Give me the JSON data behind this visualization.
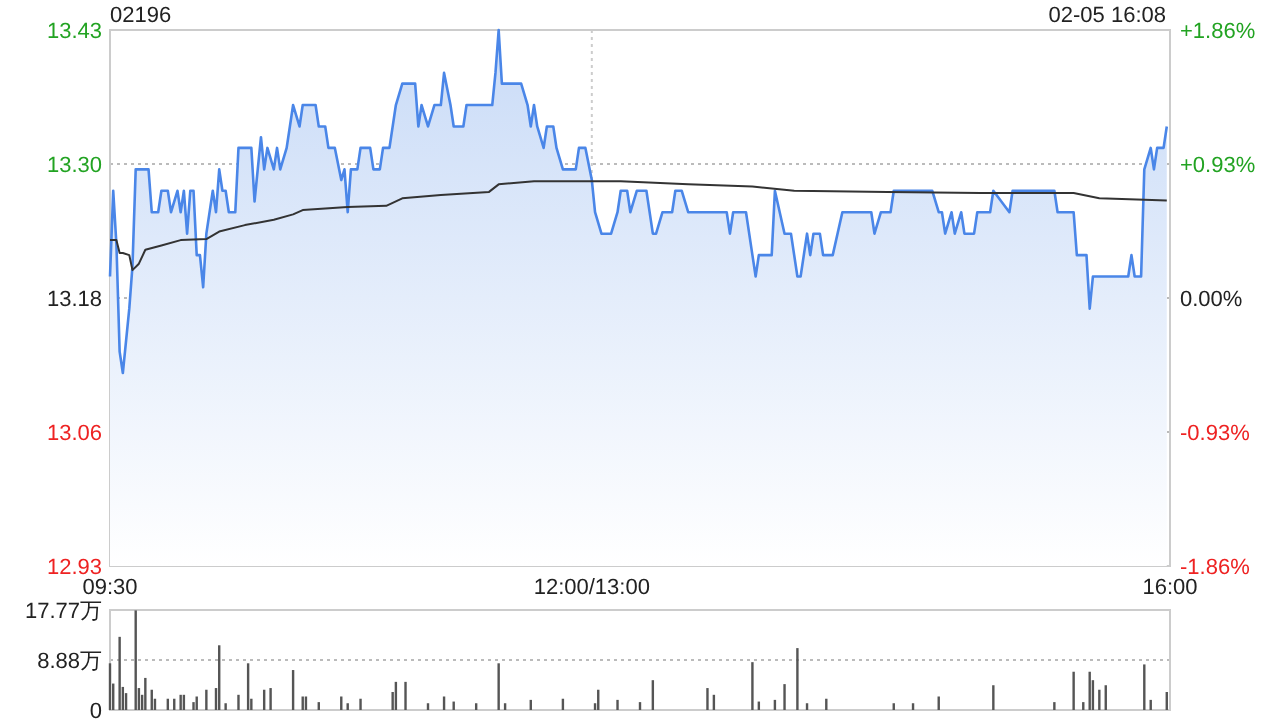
{
  "chart_data": [
    {
      "type": "area",
      "title": "02196",
      "annotations": [
        "02-05 16:08"
      ],
      "grid": true,
      "categories": [
        "09:30",
        null,
        null,
        null,
        null,
        null,
        null,
        null,
        null,
        null,
        null,
        null,
        null,
        null,
        null,
        null,
        null,
        null,
        null,
        null,
        null,
        null,
        null,
        null,
        null,
        null,
        null,
        null,
        null,
        null,
        null,
        null,
        null,
        null,
        null,
        null,
        null,
        null,
        null,
        null,
        null,
        null,
        null,
        null,
        null,
        null,
        null,
        null,
        null,
        null,
        null,
        null,
        null,
        null,
        null,
        null,
        null,
        null,
        null,
        null,
        null,
        null,
        null,
        null,
        null,
        null,
        null,
        null,
        null,
        null,
        null,
        null,
        null,
        null,
        null,
        null,
        null,
        null,
        null,
        null,
        null,
        null,
        null,
        null,
        null,
        null,
        null,
        null,
        null,
        null,
        null,
        null,
        null,
        null,
        null,
        null,
        null,
        null,
        null,
        null,
        null,
        null,
        null,
        null,
        null,
        null,
        null,
        null,
        null,
        null,
        null,
        null,
        null,
        null,
        null,
        null,
        null,
        null,
        null,
        null,
        null,
        null,
        null,
        null,
        null,
        null,
        null,
        null,
        null,
        null,
        null,
        null,
        null,
        null,
        null,
        null,
        null,
        null,
        null,
        null,
        null,
        null,
        null,
        null,
        null,
        null,
        null,
        null,
        null,
        null,
        "12:00/13:00",
        null,
        null,
        null,
        null,
        null,
        null,
        null,
        null,
        null,
        null,
        null,
        null,
        null,
        null,
        null,
        null,
        null,
        null,
        null,
        null,
        null,
        null,
        null,
        null,
        null,
        null,
        null,
        null,
        null,
        null,
        null,
        null,
        null,
        null,
        null,
        null,
        null,
        null,
        null,
        null,
        null,
        null,
        null,
        null,
        null,
        null,
        null,
        null,
        null,
        null,
        null,
        null,
        null,
        null,
        null,
        null,
        null,
        null,
        null,
        null,
        null,
        null,
        null,
        null,
        null,
        null,
        null,
        null,
        null,
        null,
        null,
        null,
        null,
        null,
        null,
        null,
        null,
        null,
        null,
        null,
        null,
        null,
        null,
        null,
        null,
        null,
        null,
        null,
        null,
        null,
        null,
        null,
        null,
        null,
        null,
        null,
        null,
        null,
        null,
        null,
        null,
        null,
        null,
        null,
        null,
        null,
        null,
        null,
        null,
        null,
        null,
        null,
        null,
        null,
        null,
        null,
        null,
        null,
        null,
        null,
        null,
        null,
        null,
        null,
        null,
        null,
        null,
        null,
        null,
        null,
        null,
        null,
        null,
        null,
        null,
        null,
        null,
        null,
        null,
        null,
        null,
        null,
        null,
        null,
        null,
        null,
        null,
        null,
        null,
        null,
        null,
        null,
        null,
        null,
        null,
        null,
        null,
        null,
        null,
        null,
        null,
        null,
        null,
        null,
        null,
        null,
        null,
        null,
        null,
        null,
        null,
        null,
        null,
        null,
        null,
        null,
        null,
        null,
        null,
        "16:00"
      ],
      "ylim": [
        12.93,
        13.43
      ],
      "yticks": [
        12.93,
        {
          "value": 13.055,
          "label": "13.06"
        },
        13.18,
        {
          "value": 13.305,
          "label": "13.30"
        },
        13.43
      ],
      "y2lim": [
        -1.86,
        1.86
      ],
      "y2ticks": [
        {
          "value": -1.86,
          "label": "-1.86%"
        },
        {
          "value": -0.93,
          "label": "-0.93%"
        },
        {
          "value": 0,
          "label": "0.00%"
        },
        {
          "value": 0.93,
          "label": "+0.93%"
        },
        {
          "value": 1.86,
          "label": "+1.86%"
        }
      ],
      "series": [
        {
          "type": "area",
          "color": "#4a86e8",
          "values": [
            13.2,
            13.28,
            13.23,
            13.13,
            13.11,
            null,
            13.17,
            13.21,
            13.3,
            null,
            null,
            null,
            13.3,
            13.26,
            null,
            13.26,
            13.28,
            null,
            13.28,
            13.26,
            null,
            13.28,
            13.26,
            13.28,
            13.24,
            13.28,
            13.28,
            13.22,
            13.22,
            13.19,
            13.24,
            null,
            13.28,
            13.26,
            13.3,
            13.28,
            13.28,
            13.26,
            null,
            13.26,
            13.32,
            null,
            null,
            null,
            13.32,
            13.27,
            null,
            13.33,
            13.3,
            13.32,
            null,
            13.3,
            13.32,
            13.3,
            null,
            13.32,
            13.34,
            13.36,
            null,
            13.34,
            13.36,
            null,
            null,
            null,
            13.36,
            13.34,
            null,
            13.34,
            13.32,
            null,
            13.32,
            null,
            13.29,
            13.3,
            13.26,
            13.3,
            null,
            13.3,
            13.32,
            null,
            null,
            13.32,
            13.3,
            null,
            13.3,
            13.32,
            null,
            13.32,
            null,
            13.36,
            null,
            13.38,
            null,
            null,
            null,
            13.38,
            13.34,
            13.36,
            null,
            13.34,
            null,
            13.36,
            null,
            13.36,
            13.39,
            null,
            13.36,
            13.34,
            null,
            null,
            13.34,
            13.36,
            null,
            null,
            null,
            null,
            null,
            null,
            null,
            13.36,
            13.39,
            13.43,
            13.38,
            null,
            null,
            null,
            null,
            null,
            13.38,
            null,
            13.36,
            13.34,
            13.36,
            13.34,
            null,
            13.32,
            13.34,
            null,
            13.34,
            13.32,
            null,
            13.3,
            null,
            null,
            null,
            13.3,
            13.32,
            null,
            13.32,
            null,
            13.29,
            13.26,
            null,
            13.24,
            null,
            null,
            13.24,
            null,
            13.26,
            13.28,
            null,
            13.28,
            13.26,
            null,
            13.28,
            null,
            null,
            13.28,
            null,
            13.24,
            13.24,
            null,
            13.26,
            null,
            null,
            13.26,
            13.28,
            null,
            13.28,
            null,
            13.26,
            null,
            null,
            null,
            null,
            null,
            null,
            null,
            null,
            null,
            null,
            null,
            13.26,
            13.24,
            13.26,
            null,
            null,
            null,
            13.26,
            null,
            13.22,
            13.2,
            13.22,
            null,
            null,
            null,
            13.22,
            13.28,
            null,
            null,
            13.24,
            null,
            13.24,
            null,
            13.2,
            13.2,
            null,
            13.24,
            13.22,
            13.24,
            null,
            13.24,
            13.22,
            null,
            null,
            13.22,
            null,
            null,
            13.26,
            null,
            null,
            null,
            null,
            null,
            null,
            null,
            null,
            13.26,
            13.24,
            null,
            13.26,
            null,
            null,
            13.26,
            13.28,
            null,
            null,
            null,
            null,
            null,
            null,
            null,
            null,
            null,
            null,
            null,
            13.28,
            null,
            13.26,
            13.26,
            13.24,
            null,
            13.26,
            13.24,
            null,
            13.26,
            13.24,
            null,
            null,
            13.24,
            13.26,
            null,
            null,
            null,
            13.26,
            13.28,
            null,
            null,
            null,
            null,
            13.26,
            13.28,
            null,
            null,
            null,
            null,
            null,
            null,
            null,
            null,
            null,
            null,
            null,
            null,
            13.28,
            13.26,
            null,
            null,
            null,
            null,
            13.26,
            13.22,
            null,
            null,
            13.22,
            13.17,
            13.2,
            null,
            null,
            null,
            null,
            null,
            null,
            null,
            null,
            null,
            null,
            13.2,
            13.22,
            13.2,
            null,
            13.2,
            13.3,
            null,
            13.32,
            13.3,
            13.32,
            null,
            13.32,
            13.34,
            null
          ]
        },
        {
          "type": "line",
          "color": "#333333",
          "values": [
            13.234,
            null,
            13.234,
            13.222,
            13.222,
            null,
            13.22,
            13.206,
            null,
            13.212,
            null,
            13.225,
            null,
            null,
            null,
            null,
            13.229,
            null,
            null,
            null,
            null,
            null,
            13.234,
            null,
            null,
            null,
            null,
            null,
            null,
            null,
            13.235,
            null,
            null,
            null,
            13.242,
            null,
            null,
            null,
            null,
            null,
            null,
            null,
            13.248,
            null,
            null,
            null,
            null,
            null,
            null,
            null,
            null,
            13.253,
            null,
            null,
            null,
            null,
            null,
            13.258,
            null,
            null,
            13.262,
            null,
            null,
            null,
            null,
            null,
            null,
            null,
            null,
            null,
            null,
            null,
            null,
            null,
            13.265,
            null,
            null,
            null,
            null,
            null,
            null,
            null,
            null,
            null,
            null,
            null,
            13.266,
            null,
            null,
            null,
            null,
            13.273,
            null,
            null,
            null,
            null,
            null,
            null,
            null,
            null,
            null,
            null,
            null,
            13.276,
            null,
            null,
            null,
            null,
            null,
            null,
            null,
            null,
            null,
            null,
            null,
            null,
            null,
            null,
            13.279,
            null,
            null,
            13.286,
            null,
            null,
            null,
            null,
            null,
            null,
            null,
            null,
            null,
            null,
            13.289,
            null,
            null,
            null,
            null,
            null,
            null,
            null,
            null,
            null,
            null,
            null,
            null,
            null,
            null,
            null,
            13.289,
            null,
            null,
            null,
            null,
            null,
            null,
            null,
            null,
            null,
            null,
            13.289,
            null,
            null,
            null,
            null,
            null,
            null,
            null,
            null,
            null,
            null,
            null,
            null,
            null,
            null,
            null,
            null,
            null,
            null,
            null,
            null,
            13.286,
            null,
            null,
            null,
            null,
            null,
            null,
            null,
            null,
            null,
            null,
            null,
            null,
            null,
            null,
            null,
            null,
            null,
            null,
            null,
            13.284,
            null,
            null,
            null,
            null,
            null,
            null,
            null,
            null,
            null,
            null,
            null,
            null,
            13.28,
            null,
            null,
            null,
            null,
            null,
            null,
            null,
            null,
            null,
            null,
            null,
            null,
            null,
            null,
            null,
            null,
            null,
            null,
            null,
            null,
            null,
            null,
            null,
            null,
            null,
            null,
            null,
            null,
            13.279,
            null,
            null,
            null,
            null,
            null,
            null,
            null,
            null,
            null,
            null,
            null,
            null,
            null,
            null,
            null,
            null,
            null,
            null,
            null,
            null,
            null,
            null,
            null,
            null,
            null,
            null,
            null,
            null,
            13.278,
            null,
            null,
            null,
            null,
            null,
            null,
            null,
            null,
            null,
            null,
            null,
            null,
            null,
            null,
            null,
            null,
            null,
            null,
            null,
            null,
            null,
            null,
            null,
            null,
            null,
            null,
            null,
            null,
            13.278,
            null,
            null,
            null,
            null,
            null,
            null,
            null,
            13.273,
            null,
            null,
            null,
            null,
            null,
            null,
            null,
            null,
            null,
            null,
            null,
            null,
            null,
            null,
            null,
            null,
            null,
            null,
            null,
            null,
            13.271,
            null
          ]
        }
      ]
    },
    {
      "type": "bar",
      "grid": "y",
      "tick_labels": "y",
      "categories": [
        null,
        null,
        null,
        null,
        null,
        null,
        null,
        null,
        null,
        null,
        null,
        null,
        null,
        null,
        null,
        null,
        null,
        null,
        null,
        null,
        null,
        null,
        null,
        null,
        null,
        null,
        null,
        null,
        null,
        null,
        null,
        null,
        null,
        null,
        null,
        null,
        null,
        null,
        null,
        null,
        null,
        null,
        null,
        null,
        null,
        null,
        null,
        null,
        null,
        null,
        null,
        null,
        null,
        null,
        null,
        null,
        null,
        null,
        null,
        null,
        null,
        null,
        null,
        null,
        null,
        null,
        null,
        null,
        null,
        null,
        null,
        null,
        null,
        null,
        null,
        null,
        null,
        null,
        null,
        null,
        null,
        null,
        null,
        null,
        null,
        null,
        null,
        null,
        null,
        null,
        null,
        null,
        null,
        null,
        null,
        null,
        null,
        null,
        null,
        null,
        null,
        null,
        null,
        null,
        null,
        null,
        null,
        null,
        null,
        null,
        null,
        null,
        null,
        null,
        null,
        null,
        null,
        null,
        null,
        null,
        null,
        null,
        null,
        null,
        null,
        null,
        null,
        null,
        null,
        null,
        null,
        null,
        null,
        null,
        null,
        null,
        null,
        null,
        null,
        null,
        null,
        null,
        null,
        null,
        null,
        null,
        null,
        null,
        null,
        null,
        null,
        null,
        null,
        null,
        null,
        null,
        null,
        null,
        null,
        null,
        null,
        null,
        null,
        null,
        null,
        null,
        null,
        null,
        null,
        null,
        null,
        null,
        null,
        null,
        null,
        null,
        null,
        null,
        null,
        null,
        null,
        null,
        null,
        null,
        null,
        null,
        null,
        null,
        null,
        null,
        null,
        null,
        null,
        null,
        null,
        null,
        null,
        null,
        null,
        null,
        null,
        null,
        null,
        null,
        null,
        null,
        null,
        null,
        null,
        null,
        null,
        null,
        null,
        null,
        null,
        null,
        null,
        null,
        null,
        null,
        null,
        null,
        null,
        null,
        null,
        null,
        null,
        null,
        null,
        null,
        null,
        null,
        null,
        null,
        null,
        null,
        null,
        null,
        null,
        null,
        null,
        null,
        null,
        null,
        null,
        null,
        null,
        null,
        null,
        null,
        null,
        null,
        null,
        null,
        null,
        null,
        null,
        null,
        null,
        null,
        null,
        null,
        null,
        null,
        null,
        null,
        null,
        null,
        null,
        null,
        null,
        null,
        null,
        null,
        null,
        null,
        null,
        null,
        null,
        null,
        null,
        null,
        null,
        null,
        null,
        null,
        null,
        null,
        null,
        null,
        null,
        null,
        null,
        null,
        null,
        null,
        null,
        null,
        null,
        null,
        null,
        null,
        null,
        null,
        null,
        null,
        null,
        null,
        null,
        null,
        null,
        null,
        null,
        null,
        null,
        null,
        null,
        null,
        null,
        null,
        null,
        null,
        null,
        null,
        null,
        null,
        null,
        null,
        null,
        null,
        null
      ],
      "ylim": [
        0,
        17.77
      ],
      "yticks": [
        0,
        {
          "value": 8.88,
          "label": "8.88万"
        },
        {
          "value": 17.77,
          "label": "17.77万"
        }
      ],
      "series": [
        {
          "color": "#555555",
          "values": [
            8.3,
            4.7,
            null,
            13.0,
            4.1,
            3.0,
            null,
            null,
            17.7,
            3.9,
            2.7,
            5.7,
            null,
            3.6,
            2.0,
            null,
            null,
            null,
            2.0,
            null,
            2.0,
            null,
            2.7,
            2.7,
            null,
            null,
            1.4,
            2.4,
            null,
            null,
            3.6,
            null,
            null,
            3.9,
            11.5,
            null,
            1.2,
            null,
            null,
            null,
            2.7,
            null,
            null,
            8.3,
            2.0,
            null,
            null,
            null,
            3.6,
            null,
            3.9,
            null,
            null,
            null,
            null,
            null,
            null,
            7.1,
            null,
            null,
            2.4,
            2.4,
            null,
            null,
            null,
            1.4,
            null,
            null,
            null,
            null,
            null,
            null,
            2.4,
            null,
            1.2,
            null,
            null,
            null,
            2.0,
            null,
            null,
            null,
            null,
            null,
            null,
            null,
            null,
            null,
            3.2,
            5.0,
            null,
            null,
            5.0,
            null,
            null,
            null,
            null,
            null,
            null,
            1.2,
            null,
            null,
            null,
            null,
            2.4,
            null,
            null,
            1.5,
            null,
            null,
            null,
            null,
            null,
            null,
            1.2,
            null,
            null,
            null,
            null,
            null,
            null,
            8.3,
            null,
            1.2,
            null,
            null,
            null,
            null,
            null,
            null,
            null,
            1.8,
            null,
            null,
            null,
            null,
            null,
            null,
            null,
            null,
            null,
            2.0,
            null,
            null,
            null,
            null,
            null,
            null,
            null,
            null,
            null,
            1.2,
            3.6,
            null,
            null,
            null,
            null,
            null,
            1.8,
            null,
            null,
            null,
            null,
            null,
            null,
            1.4,
            null,
            null,
            null,
            5.3,
            null,
            null,
            null,
            null,
            null,
            null,
            null,
            null,
            null,
            null,
            null,
            null,
            null,
            null,
            null,
            null,
            3.9,
            null,
            2.7,
            null,
            null,
            null,
            null,
            null,
            null,
            null,
            null,
            null,
            null,
            null,
            8.5,
            null,
            1.5,
            null,
            null,
            null,
            null,
            1.8,
            null,
            null,
            4.6,
            null,
            null,
            null,
            11.0,
            null,
            null,
            1.2,
            null,
            null,
            null,
            null,
            null,
            2.0,
            null,
            null,
            null,
            null,
            null,
            null,
            null,
            null,
            null,
            null,
            null,
            null,
            null,
            null,
            null,
            null,
            null,
            null,
            null,
            null,
            1.2,
            null,
            null,
            null,
            null,
            null,
            1.2,
            null,
            null,
            null,
            null,
            null,
            null,
            null,
            2.4,
            null,
            null,
            null,
            null,
            null,
            null,
            null,
            null,
            null,
            null,
            null,
            null,
            null,
            null,
            null,
            null,
            4.4,
            null,
            null,
            null,
            null,
            null,
            null,
            null,
            null,
            null,
            null,
            null,
            null,
            null,
            null,
            null,
            null,
            null,
            null,
            1.4,
            null,
            null,
            null,
            null,
            null,
            6.8,
            null,
            null,
            1.4,
            null,
            6.8,
            5.3,
            null,
            3.6,
            null,
            4.4,
            null,
            null,
            null,
            null,
            null,
            null,
            null,
            null,
            null,
            null,
            null,
            8.1,
            null,
            1.8,
            null,
            null,
            null,
            null,
            3.2,
            null
          ]
        }
      ]
    }
  ]
}
